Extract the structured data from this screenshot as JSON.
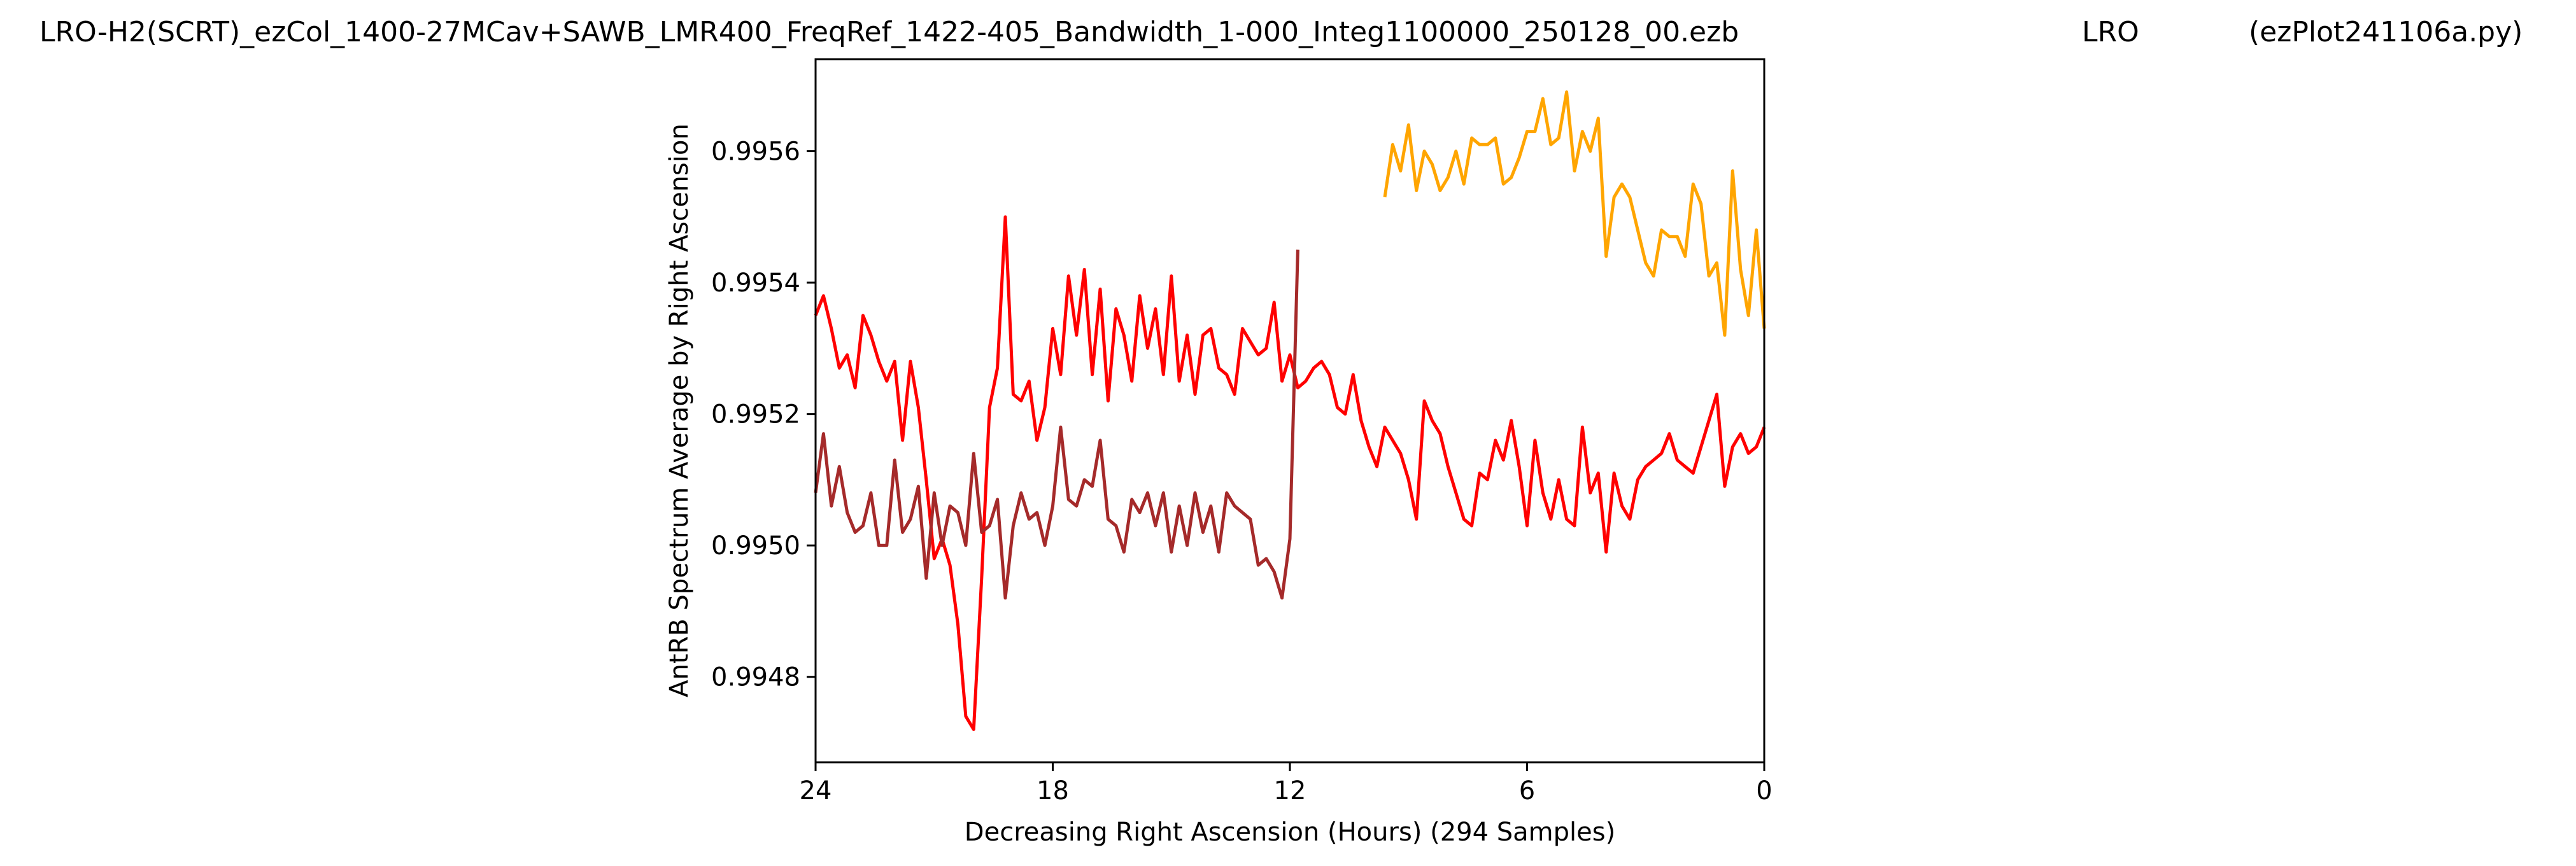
{
  "chart_data": {
    "type": "line",
    "title": "LRO-H2(SCRT)_ezCol_1400-27MCav+SAWB_LMR400_FreqRef_1422-405_Bandwidth_1-000_Integ1100000_250128_00.ezb",
    "title_middle": "LRO",
    "title_right": "(ezPlot241106a.py)",
    "xlabel": "Decreasing Right Ascension (Hours) (294 Samples)",
    "ylabel": "AntRB Spectrum Average by Right Ascension",
    "xlim": [
      24,
      0
    ],
    "ylim": [
      0.99467,
      0.99574
    ],
    "x_ticks": [
      24,
      18,
      12,
      6,
      0
    ],
    "x_tick_labels": [
      "24",
      "18",
      "12",
      "6",
      "0"
    ],
    "y_ticks": [
      0.9948,
      0.995,
      0.9952,
      0.9954,
      0.9956
    ],
    "y_tick_labels": [
      "0.9948",
      "0.9950",
      "0.9952",
      "0.9954",
      "0.9956"
    ],
    "grid": false,
    "series": [
      {
        "color": "#ff0000",
        "x": [
          24.0,
          23.8,
          23.6,
          23.4,
          23.2,
          23.0,
          22.8,
          22.6,
          22.4,
          22.2,
          22.0,
          21.8,
          21.6,
          21.4,
          21.2,
          21.0,
          20.8,
          20.6,
          20.4,
          20.2,
          20.0,
          19.8,
          19.6,
          19.4,
          19.2,
          19.0,
          18.8,
          18.6,
          18.4,
          18.2,
          18.0,
          17.8,
          17.6,
          17.4,
          17.2,
          17.0,
          16.8,
          16.6,
          16.4,
          16.2,
          16.0,
          15.8,
          15.6,
          15.4,
          15.2,
          15.0,
          14.8,
          14.6,
          14.4,
          14.2,
          14.0,
          13.8,
          13.6,
          13.4,
          13.2,
          13.0,
          12.8,
          12.6,
          12.4,
          12.2,
          12.0,
          11.8,
          11.6,
          11.4,
          11.2,
          11.0,
          10.8,
          10.6,
          10.4,
          10.2,
          10.0,
          9.8,
          9.6,
          9.4,
          9.2,
          9.0,
          8.8,
          8.6,
          8.4,
          8.2,
          8.0,
          7.8,
          7.6,
          7.4,
          7.2,
          7.0,
          6.8,
          6.6,
          6.4,
          6.2,
          6.0,
          5.8,
          5.6,
          5.4,
          5.2,
          5.0,
          4.8,
          4.6,
          4.4,
          4.2,
          4.0,
          3.8,
          3.6,
          3.4,
          3.2,
          3.0,
          2.8,
          2.6,
          2.4,
          2.2,
          2.0,
          1.8,
          1.6,
          1.4,
          1.2,
          1.0,
          0.8,
          0.6,
          0.4,
          0.2,
          0.0
        ],
        "y": [
          0.99535,
          0.99538,
          0.99533,
          0.99527,
          0.99529,
          0.99524,
          0.99535,
          0.99532,
          0.99528,
          0.99525,
          0.99528,
          0.99516,
          0.99528,
          0.99521,
          0.9951,
          0.99498,
          0.99501,
          0.99497,
          0.99488,
          0.99474,
          0.99472,
          0.99495,
          0.99521,
          0.99527,
          0.9955,
          0.99523,
          0.99522,
          0.99525,
          0.99516,
          0.99521,
          0.99533,
          0.99526,
          0.99541,
          0.99532,
          0.99542,
          0.99526,
          0.99539,
          0.99522,
          0.99536,
          0.99532,
          0.99525,
          0.99538,
          0.9953,
          0.99536,
          0.99526,
          0.99541,
          0.99525,
          0.99532,
          0.99523,
          0.99532,
          0.99533,
          0.99527,
          0.99526,
          0.99523,
          0.99533,
          0.99531,
          0.99529,
          0.9953,
          0.99537,
          0.99525,
          0.99529,
          0.99524,
          0.99525,
          0.99527,
          0.99528,
          0.99526,
          0.99521,
          0.9952,
          0.99526,
          0.99519,
          0.99515,
          0.99512,
          0.99518,
          0.99516,
          0.99514,
          0.9951,
          0.99504,
          0.99522,
          0.99519,
          0.99517,
          0.99512,
          0.99508,
          0.99504,
          0.99503,
          0.99511,
          0.9951,
          0.99516,
          0.99513,
          0.99519,
          0.99512,
          0.99503,
          0.99516,
          0.99508,
          0.99504,
          0.9951,
          0.99504,
          0.99503,
          0.99518,
          0.99508,
          0.99511,
          0.99499,
          0.99511,
          0.99506,
          0.99504,
          0.9951,
          0.99512,
          0.99513,
          0.99514,
          0.99517,
          0.99513,
          0.99512,
          0.99511,
          0.99515,
          0.99519,
          0.99523,
          0.99509,
          0.99515,
          0.99517,
          0.99514,
          0.99515,
          0.99518
        ]
      },
      {
        "color": "#a52a2a",
        "x": [
          24.0,
          23.8,
          23.6,
          23.4,
          23.2,
          23.0,
          22.8,
          22.6,
          22.4,
          22.2,
          22.0,
          21.8,
          21.6,
          21.4,
          21.2,
          21.0,
          20.8,
          20.6,
          20.4,
          20.2,
          20.0,
          19.8,
          19.6,
          19.4,
          19.2,
          19.0,
          18.8,
          18.6,
          18.4,
          18.2,
          18.0,
          17.8,
          17.6,
          17.4,
          17.2,
          17.0,
          16.8,
          16.6,
          16.4,
          16.2,
          16.0,
          15.8,
          15.6,
          15.4,
          15.2,
          15.0,
          14.8,
          14.6,
          14.4,
          14.2,
          14.0,
          13.8,
          13.6,
          13.4,
          13.2,
          13.0,
          12.8,
          12.6,
          12.4,
          12.2,
          12.0,
          11.8
        ],
        "y": [
          0.99508,
          0.99517,
          0.99506,
          0.99512,
          0.99505,
          0.99502,
          0.99503,
          0.99508,
          0.995,
          0.995,
          0.99513,
          0.99502,
          0.99504,
          0.99509,
          0.99495,
          0.99508,
          0.995,
          0.99506,
          0.99505,
          0.995,
          0.99514,
          0.99502,
          0.99503,
          0.99507,
          0.99492,
          0.99503,
          0.99508,
          0.99504,
          0.99505,
          0.995,
          0.99506,
          0.99518,
          0.99507,
          0.99506,
          0.9951,
          0.99509,
          0.99516,
          0.99504,
          0.99503,
          0.99499,
          0.99507,
          0.99505,
          0.99508,
          0.99503,
          0.99508,
          0.99499,
          0.99506,
          0.995,
          0.99508,
          0.99502,
          0.99506,
          0.99499,
          0.99508,
          0.99506,
          0.99505,
          0.99504,
          0.99497,
          0.99498,
          0.99496,
          0.99492,
          0.99501,
          0.99545
        ]
      },
      {
        "color": "#ffa500",
        "x": [
          9.6,
          9.4,
          9.2,
          9.0,
          8.8,
          8.6,
          8.4,
          8.2,
          8.0,
          7.8,
          7.6,
          7.4,
          7.2,
          7.0,
          6.8,
          6.6,
          6.4,
          6.2,
          6.0,
          5.8,
          5.6,
          5.4,
          5.2,
          5.0,
          4.8,
          4.6,
          4.4,
          4.2,
          4.0,
          3.8,
          3.6,
          3.4,
          3.2,
          3.0,
          2.8,
          2.6,
          2.4,
          2.2,
          2.0,
          1.8,
          1.6,
          1.4,
          1.2,
          1.0,
          0.8,
          0.6,
          0.4,
          0.2,
          0.0
        ],
        "y": [
          0.99553,
          0.99561,
          0.99557,
          0.99564,
          0.99554,
          0.9956,
          0.99558,
          0.99554,
          0.99556,
          0.9956,
          0.99555,
          0.99562,
          0.99561,
          0.99561,
          0.99562,
          0.99555,
          0.99556,
          0.99559,
          0.99563,
          0.99563,
          0.99568,
          0.99561,
          0.99562,
          0.99569,
          0.99557,
          0.99563,
          0.9956,
          0.99565,
          0.99544,
          0.99553,
          0.99555,
          0.99553,
          0.99548,
          0.99543,
          0.99541,
          0.99548,
          0.99547,
          0.99547,
          0.99544,
          0.99555,
          0.99552,
          0.99541,
          0.99543,
          0.99532,
          0.99557,
          0.99542,
          0.99535,
          0.99548,
          0.99533
        ]
      }
    ]
  }
}
